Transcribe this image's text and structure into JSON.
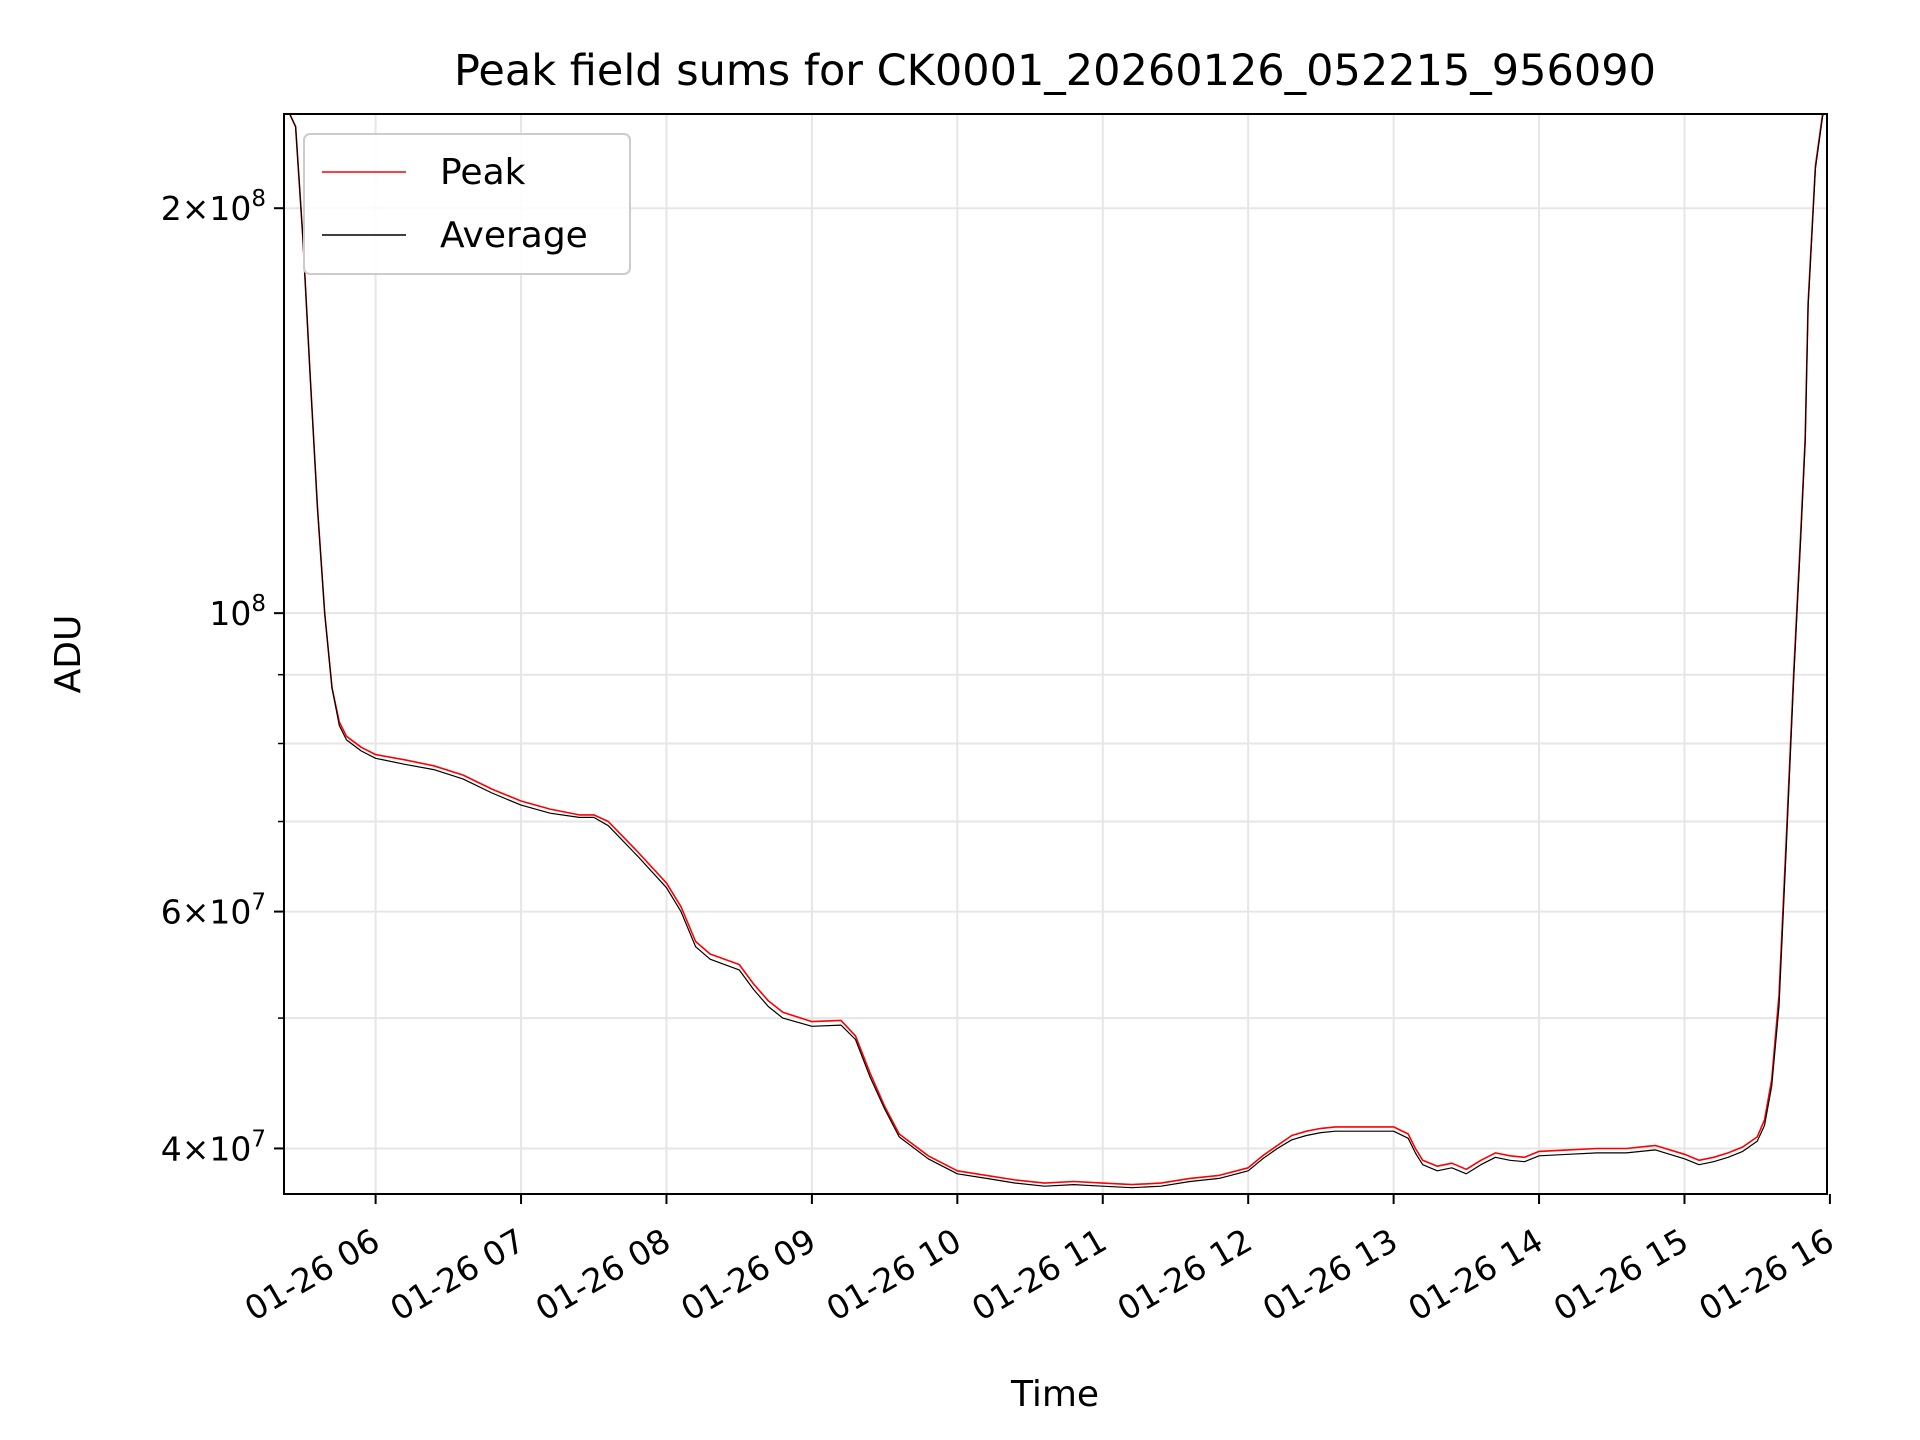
{
  "chart_data": {
    "type": "line",
    "title": "Peak field sums for CK0001_20260126_052215_956090",
    "xlabel": "Time",
    "ylabel": "ADU",
    "y_scale": "log",
    "x_unit": "hours of 2026-01-26",
    "xlim": [
      5.37,
      15.98
    ],
    "ylim": [
      37000000,
      235000000
    ],
    "grid": true,
    "legend_position": "upper left",
    "x_ticks": [
      {
        "value": 6,
        "label": "01-26 06"
      },
      {
        "value": 7,
        "label": "01-26 07"
      },
      {
        "value": 8,
        "label": "01-26 08"
      },
      {
        "value": 9,
        "label": "01-26 09"
      },
      {
        "value": 10,
        "label": "01-26 10"
      },
      {
        "value": 11,
        "label": "01-26 11"
      },
      {
        "value": 12,
        "label": "01-26 12"
      },
      {
        "value": 13,
        "label": "01-26 13"
      },
      {
        "value": 14,
        "label": "01-26 14"
      },
      {
        "value": 15,
        "label": "01-26 15"
      },
      {
        "value": 16,
        "label": "01-26 16"
      }
    ],
    "y_major_ticks": [
      {
        "value": 40000000,
        "mantissa": "4",
        "exp": "7"
      },
      {
        "value": 60000000,
        "mantissa": "6",
        "exp": "7"
      },
      {
        "value": 100000000,
        "mantissa": "",
        "exp": "8"
      },
      {
        "value": 200000000,
        "mantissa": "2",
        "exp": "8"
      }
    ],
    "y_minor_ticks": [
      50000000,
      70000000,
      80000000,
      90000000
    ],
    "series": [
      {
        "name": "Peak",
        "color": "#ff0000",
        "x": [
          5.37,
          5.45,
          5.5,
          5.55,
          5.6,
          5.65,
          5.7,
          5.75,
          5.8,
          5.9,
          6.0,
          6.2,
          6.4,
          6.6,
          6.8,
          7.0,
          7.2,
          7.4,
          7.5,
          7.6,
          7.8,
          8.0,
          8.1,
          8.2,
          8.3,
          8.5,
          8.6,
          8.7,
          8.8,
          9.0,
          9.2,
          9.3,
          9.4,
          9.5,
          9.6,
          9.8,
          10.0,
          10.2,
          10.4,
          10.6,
          10.8,
          11.0,
          11.2,
          11.4,
          11.6,
          11.8,
          12.0,
          12.1,
          12.2,
          12.3,
          12.4,
          12.5,
          12.6,
          12.7,
          12.8,
          12.9,
          13.0,
          13.1,
          13.15,
          13.2,
          13.3,
          13.4,
          13.5,
          13.6,
          13.7,
          13.8,
          13.9,
          14.0,
          14.2,
          14.4,
          14.6,
          14.8,
          15.0,
          15.1,
          15.2,
          15.3,
          15.4,
          15.5,
          15.55,
          15.6,
          15.65,
          15.7,
          15.75,
          15.8,
          15.83,
          15.85,
          15.9,
          15.95,
          15.98
        ],
        "y": [
          240000000,
          230000000,
          190000000,
          150000000,
          120000000,
          100000000,
          88000000,
          83000000,
          81000000,
          79500000,
          78500000,
          77800000,
          77000000,
          75800000,
          74000000,
          72500000,
          71500000,
          70800000,
          70800000,
          70000000,
          66500000,
          63000000,
          60500000,
          57000000,
          55800000,
          54800000,
          53000000,
          51500000,
          50500000,
          49700000,
          49800000,
          48500000,
          45500000,
          43000000,
          41000000,
          39500000,
          38500000,
          38200000,
          37900000,
          37700000,
          37800000,
          37700000,
          37600000,
          37700000,
          38000000,
          38200000,
          38700000,
          39500000,
          40200000,
          40900000,
          41200000,
          41400000,
          41500000,
          41500000,
          41500000,
          41500000,
          41500000,
          41000000,
          40000000,
          39200000,
          38800000,
          39000000,
          38600000,
          39200000,
          39700000,
          39500000,
          39400000,
          39800000,
          39900000,
          40000000,
          40000000,
          40200000,
          39600000,
          39200000,
          39400000,
          39700000,
          40100000,
          40800000,
          42000000,
          45000000,
          52000000,
          68000000,
          90000000,
          115000000,
          135000000,
          170000000,
          215000000,
          235000000,
          240000000
        ]
      },
      {
        "name": "Average",
        "color": "#000000",
        "x": [
          5.37,
          5.45,
          5.5,
          5.55,
          5.6,
          5.65,
          5.7,
          5.75,
          5.8,
          5.9,
          6.0,
          6.2,
          6.4,
          6.6,
          6.8,
          7.0,
          7.2,
          7.4,
          7.5,
          7.6,
          7.8,
          8.0,
          8.1,
          8.2,
          8.3,
          8.5,
          8.6,
          8.7,
          8.8,
          9.0,
          9.2,
          9.3,
          9.4,
          9.5,
          9.6,
          9.8,
          10.0,
          10.2,
          10.4,
          10.6,
          10.8,
          11.0,
          11.2,
          11.4,
          11.6,
          11.8,
          12.0,
          12.1,
          12.2,
          12.3,
          12.4,
          12.5,
          12.6,
          12.7,
          12.8,
          12.9,
          13.0,
          13.1,
          13.15,
          13.2,
          13.3,
          13.4,
          13.5,
          13.6,
          13.7,
          13.8,
          13.9,
          14.0,
          14.2,
          14.4,
          14.6,
          14.8,
          15.0,
          15.1,
          15.2,
          15.3,
          15.4,
          15.5,
          15.55,
          15.6,
          15.65,
          15.7,
          15.75,
          15.8,
          15.83,
          15.85,
          15.9,
          15.95,
          15.98
        ],
        "y": [
          240000000,
          230000000,
          190000000,
          150000000,
          120000000,
          100000000,
          88000000,
          82500000,
          80500000,
          79000000,
          78000000,
          77200000,
          76500000,
          75300000,
          73500000,
          72000000,
          71000000,
          70500000,
          70500000,
          69500000,
          66000000,
          62500000,
          60000000,
          56500000,
          55300000,
          54300000,
          52500000,
          51000000,
          50000000,
          49300000,
          49400000,
          48200000,
          45200000,
          42800000,
          40800000,
          39300000,
          38300000,
          38000000,
          37700000,
          37500000,
          37600000,
          37500000,
          37400000,
          37500000,
          37800000,
          38000000,
          38500000,
          39300000,
          40000000,
          40600000,
          40900000,
          41100000,
          41200000,
          41200000,
          41200000,
          41200000,
          41200000,
          40700000,
          39700000,
          38900000,
          38500000,
          38700000,
          38300000,
          38900000,
          39400000,
          39200000,
          39100000,
          39500000,
          39600000,
          39700000,
          39700000,
          39900000,
          39300000,
          38900000,
          39100000,
          39400000,
          39800000,
          40500000,
          41600000,
          44500000,
          51000000,
          67000000,
          89000000,
          114000000,
          134000000,
          169000000,
          214000000,
          234000000,
          240000000
        ]
      }
    ]
  }
}
